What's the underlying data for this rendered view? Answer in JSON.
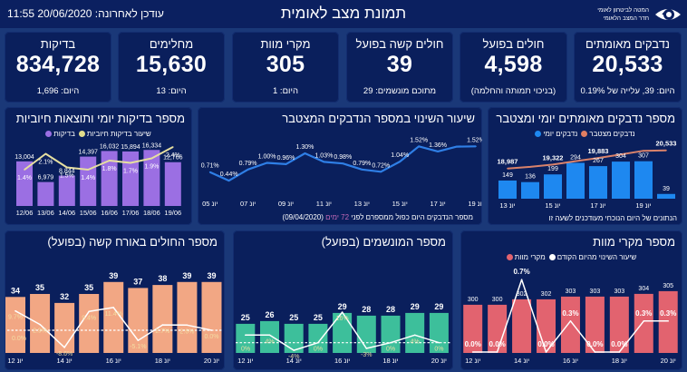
{
  "header": {
    "title": "תמונת מצב לאומית",
    "updated": "עודכן לאחרונה: 20/06/2020 11:55",
    "logo_line1": "המטה לביטחון לאומי",
    "logo_line2": "חדר המצב הלאומי",
    "logo_icon": "eye-icon"
  },
  "kpis": [
    {
      "title": "נדבקים מאומתים",
      "value": "20,533",
      "sub": "היום: 39, עלייה של  0.19%"
    },
    {
      "title": "חולים בפועל",
      "value": "4,598",
      "sub": "(בניכוי תמותה והחלמה)"
    },
    {
      "title": "חולים קשה בפועל",
      "value": "39",
      "sub": "מתוכם מונשמים: 29"
    },
    {
      "title": "מקרי מוות",
      "value": "305",
      "sub": "היום: 1"
    },
    {
      "title": "מחלימים",
      "value": "15,630",
      "sub": "היום: 13"
    },
    {
      "title": "בדיקות",
      "value": "834,728",
      "sub": "היום: 1,696"
    }
  ],
  "chart_data": [
    {
      "type": "bar+line",
      "title": "מספר בדיקות יומי ותוצאות חיוביות",
      "legend": [
        {
          "label": "בדיקות",
          "color": "#9b6fe3"
        },
        {
          "label": "שיעור בדיקות חיוביות",
          "color": "#e2dc8c"
        }
      ],
      "categories": [
        "12/06",
        "13/06",
        "14/06",
        "15/06",
        "16/06",
        "17/06",
        "18/06",
        "19/06"
      ],
      "tick_indices": [
        0,
        1,
        2,
        3,
        4,
        5,
        6,
        7
      ],
      "series": [
        {
          "name": "בדיקות",
          "kind": "bar",
          "values": [
            13004,
            6979,
            8844,
            14397,
            16032,
            15894,
            16334,
            12766
          ],
          "format": "number",
          "color": "#9b6fe3"
        },
        {
          "name": "שיעור בדיקות חיוביות",
          "kind": "line",
          "values": [
            1.4,
            2.1,
            1.5,
            1.4,
            1.8,
            1.7,
            1.9,
            2.4
          ],
          "format": "percent",
          "decimals": 1,
          "color": "#e6dfa0"
        }
      ]
    },
    {
      "type": "line",
      "title": "שיעור השינוי במספר הנדבקים המצטבר",
      "categories": [
        "יונ 05",
        "יונ 06",
        "יונ 07",
        "יונ 08",
        "יונ 09",
        "יונ 10",
        "יונ 11",
        "יונ 12",
        "יונ 13",
        "יונ 14",
        "יונ 15",
        "יונ 16",
        "יונ 17",
        "יונ 18",
        "יונ 19"
      ],
      "tick_indices": [
        0,
        2,
        4,
        6,
        8,
        10,
        12,
        14
      ],
      "series": [
        {
          "kind": "line",
          "values": [
            0.71,
            0.44,
            0.79,
            1.0,
            0.96,
            1.3,
            1.03,
            0.98,
            0.79,
            0.72,
            1.04,
            1.52,
            1.36,
            1.51,
            1.52
          ],
          "format": "percent",
          "decimals": 2,
          "color": "#2f7fe6",
          "labeled_indices": [
            0,
            1,
            2,
            3,
            4,
            5,
            6,
            7,
            8,
            9,
            10,
            11,
            12,
            14
          ]
        }
      ],
      "footnote": {
        "text": "מספר הנדבקים היום כפול ממספרם לפני",
        "highlight": "72 ימים",
        "date": "(09/04/2020)",
        "highlight_color": "#c56ab8"
      }
    },
    {
      "type": "bar+line",
      "title": "מספר נדבקים מאומתים יומי ומצטבר",
      "legend": [
        {
          "label": "נדבקים יומי",
          "color": "#1e88f0"
        },
        {
          "label": "נדבקים מצטבר",
          "color": "#e07e62"
        }
      ],
      "categories": [
        "יונ 13",
        "יונ 14",
        "יונ 15",
        "יונ 16",
        "יונ 17",
        "יונ 18",
        "יונ 19",
        "יונ 20"
      ],
      "tick_indices": [
        0,
        2,
        4,
        6
      ],
      "series": [
        {
          "name": "נדבקים יומי",
          "kind": "bar",
          "values": [
            149,
            136,
            199,
            294,
            267,
            304,
            307,
            39
          ],
          "format": "number",
          "color": "#1e88f0"
        },
        {
          "name": "נדבקים מצטבר",
          "kind": "line",
          "values": [
            18987,
            19123,
            19322,
            19616,
            19883,
            20187,
            20494,
            20533
          ],
          "format": "number",
          "color": "#d9826b",
          "labeled_indices": [
            0,
            2,
            4,
            7
          ]
        }
      ],
      "footnote": "הנתונים של היום הנוכחי מעודכנים לשעה זו"
    },
    {
      "type": "bar+line",
      "title": "מספר החולים באורח קשה (בפועל)",
      "categories": [
        "יונ 12",
        "יונ 13",
        "יונ 14",
        "יונ 15",
        "יונ 16",
        "יונ 17",
        "יונ 18",
        "יונ 19",
        "יונ 20"
      ],
      "tick_indices": [
        0,
        2,
        4,
        6,
        8
      ],
      "series": [
        {
          "name": "חולים קשה",
          "kind": "bar",
          "values": [
            34,
            35,
            32,
            35,
            39,
            37,
            38,
            39,
            39
          ],
          "format": "number",
          "color": "#f2a784"
        },
        {
          "name": "שיעור השינוי",
          "kind": "line",
          "values": [
            9.7,
            2.9,
            -8.6,
            9.4,
            11.4,
            -5.1,
            2.7,
            2.6,
            0.0
          ],
          "format": "percent",
          "decimals": 1,
          "color": "#ffffff"
        }
      ],
      "reference_line": {
        "value": 0,
        "label": "0.0%"
      }
    },
    {
      "type": "bar+line",
      "title": "מספר המונשמים (בפועל)",
      "categories": [
        "יונ 12",
        "יונ 13",
        "יונ 14",
        "יונ 15",
        "יונ 16",
        "יונ 17",
        "יונ 18",
        "יונ 19",
        "יונ 20"
      ],
      "tick_indices": [
        0,
        2,
        4,
        6,
        8
      ],
      "series": [
        {
          "name": "מונשמים",
          "kind": "bar",
          "values": [
            25,
            26,
            25,
            25,
            29,
            28,
            28,
            29,
            29
          ],
          "format": "number",
          "color": "#3dbf9b"
        },
        {
          "name": "שיעור השינוי",
          "kind": "line",
          "values": [
            4,
            4,
            -4,
            0,
            16,
            -3,
            0,
            4,
            0
          ],
          "format": "percent",
          "decimals": 0,
          "color": "#ffffff",
          "labeled_indices": [
            1,
            2,
            3,
            4,
            5,
            6,
            7,
            8
          ]
        }
      ],
      "reference_line": {
        "value": 0,
        "label": "0%"
      }
    },
    {
      "type": "bar+line",
      "title": "מספר מקרי מוות",
      "legend": [
        {
          "label": "מקרי מוות",
          "color": "#e2636f"
        },
        {
          "label": "שיעור השינוי מהיום הקודם",
          "color": "#ffffff"
        }
      ],
      "categories": [
        "יונ 12",
        "יונ 13",
        "יונ 14",
        "יונ 15",
        "יונ 16",
        "יונ 17",
        "יונ 18",
        "יונ 19",
        "יונ 20"
      ],
      "tick_indices": [
        0,
        2,
        4,
        6,
        8
      ],
      "series": [
        {
          "name": "מקרי מוות",
          "kind": "bar",
          "values": [
            300,
            300,
            302,
            302,
            303,
            303,
            303,
            304,
            305
          ],
          "format": "number",
          "color": "#e2636f"
        },
        {
          "name": "שיעור השינוי מהיום הקודם",
          "kind": "line",
          "values": [
            0.0,
            0.0,
            0.7,
            0.0,
            0.3,
            0.0,
            0.0,
            0.3,
            0.3
          ],
          "format": "percent",
          "decimals": 1,
          "color": "#ffffff"
        }
      ]
    }
  ]
}
